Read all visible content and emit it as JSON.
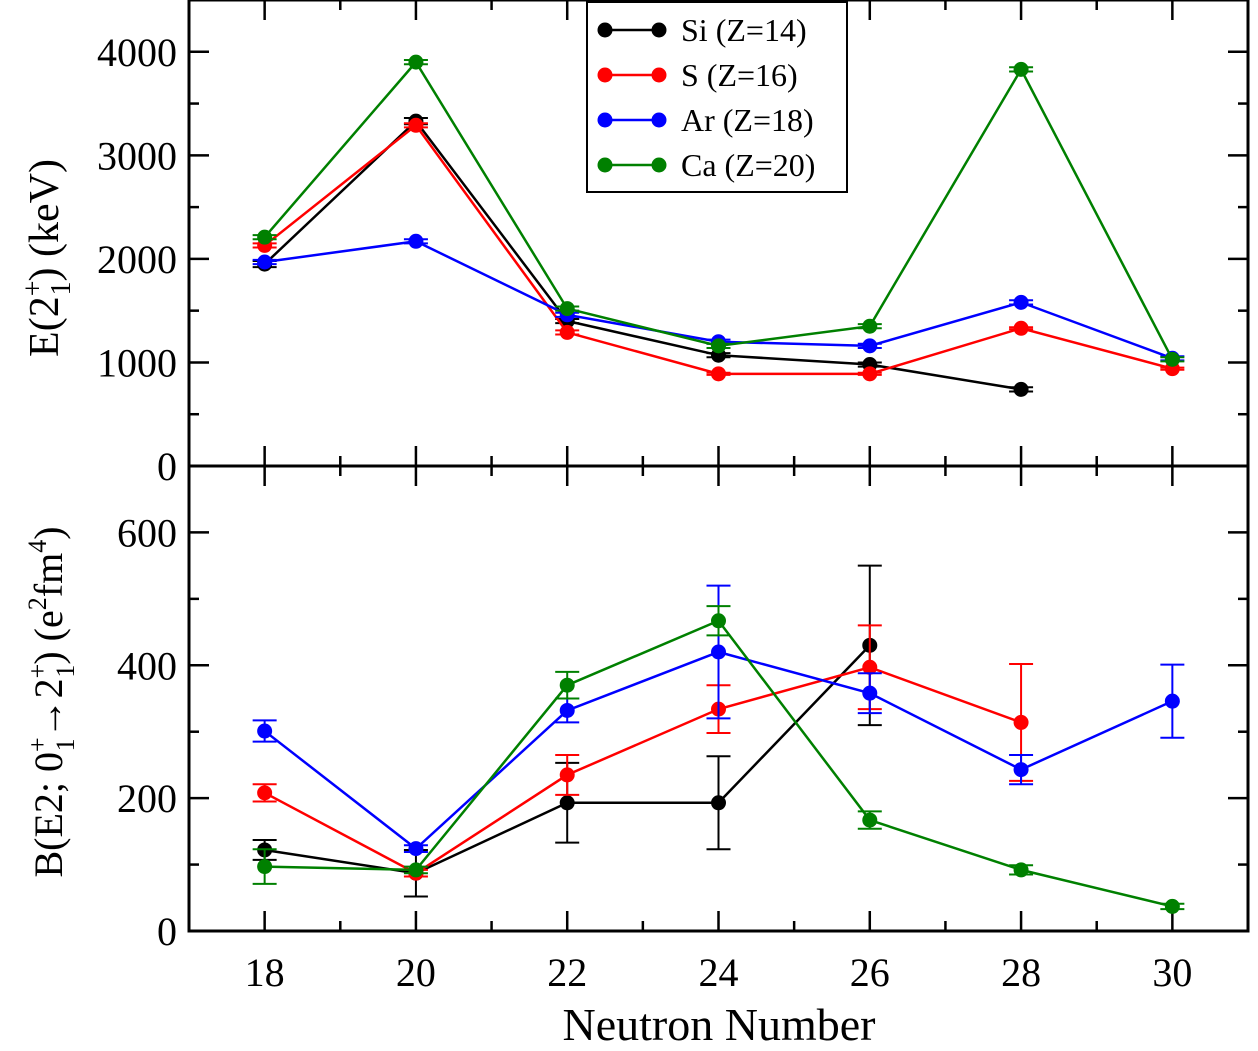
{
  "chart_data": [
    {
      "type": "line",
      "panel": "top",
      "ylabel": {
        "base": "E(2",
        "sup": "+",
        "sub": "1",
        "tail": ") (keV)"
      },
      "xlim": [
        17,
        31
      ],
      "ylim": [
        0,
        4500
      ],
      "yticks": [
        0,
        1000,
        2000,
        3000,
        4000
      ],
      "yminor_step": 500,
      "grid": false,
      "legend_position": "top-center",
      "series": [
        {
          "name": "Si (Z=14)",
          "color": "#000000",
          "points": [
            {
              "x": 18,
              "y": 1950,
              "err": 30
            },
            {
              "x": 20,
              "y": 3330,
              "err": 30
            },
            {
              "x": 22,
              "y": 1400,
              "err": 20
            },
            {
              "x": 24,
              "y": 1070,
              "err": 20
            },
            {
              "x": 26,
              "y": 980,
              "err": 20
            },
            {
              "x": 28,
              "y": 740,
              "err": 20
            }
          ]
        },
        {
          "name": "S (Z=16)",
          "color": "#ff0000",
          "points": [
            {
              "x": 18,
              "y": 2130,
              "err": 20
            },
            {
              "x": 20,
              "y": 3290,
              "err": 20
            },
            {
              "x": 22,
              "y": 1290,
              "err": 20
            },
            {
              "x": 24,
              "y": 890,
              "err": 10
            },
            {
              "x": 26,
              "y": 890,
              "err": 10
            },
            {
              "x": 28,
              "y": 1330,
              "err": 10
            },
            {
              "x": 30,
              "y": 940,
              "err": 10
            }
          ]
        },
        {
          "name": "Ar (Z=18)",
          "color": "#0000ff",
          "points": [
            {
              "x": 18,
              "y": 1970,
              "err": 20
            },
            {
              "x": 20,
              "y": 2170,
              "err": 20
            },
            {
              "x": 22,
              "y": 1460,
              "err": 20
            },
            {
              "x": 24,
              "y": 1200,
              "err": 20
            },
            {
              "x": 26,
              "y": 1160,
              "err": 20
            },
            {
              "x": 28,
              "y": 1580,
              "err": 20
            },
            {
              "x": 30,
              "y": 1040,
              "err": 20
            }
          ]
        },
        {
          "name": "Ca (Z=20)",
          "color": "#008000",
          "points": [
            {
              "x": 18,
              "y": 2210,
              "err": 20
            },
            {
              "x": 20,
              "y": 3900,
              "err": 20
            },
            {
              "x": 22,
              "y": 1520,
              "err": 20
            },
            {
              "x": 24,
              "y": 1160,
              "err": 20
            },
            {
              "x": 26,
              "y": 1350,
              "err": 20
            },
            {
              "x": 28,
              "y": 3830,
              "err": 20
            },
            {
              "x": 30,
              "y": 1030,
              "err": 20
            }
          ]
        }
      ]
    },
    {
      "type": "line",
      "panel": "bottom",
      "ylabel": {
        "p1": "B(E2; 0",
        "p1sup": "+",
        "p1sub": "1",
        "arrow": "→",
        "p2": "2",
        "p2sup": "+",
        "p2sub": "1",
        "p3": ") (e",
        "p3sup": "2",
        "p4": "fm",
        "p4sup": "4",
        "p5": ")"
      },
      "xlabel": "Neutron Number",
      "xlim": [
        17,
        31
      ],
      "xticks": [
        18,
        20,
        22,
        24,
        26,
        28,
        30
      ],
      "ylim": [
        0,
        700
      ],
      "yticks": [
        0,
        200,
        400,
        600
      ],
      "yminor_step": 100,
      "grid": false,
      "series": [
        {
          "name": "Si (Z=14)",
          "color": "#000000",
          "points": [
            {
              "x": 18,
              "y": 122,
              "err": 15
            },
            {
              "x": 20,
              "y": 87,
              "err": 35
            },
            {
              "x": 22,
              "y": 193,
              "err": 60
            },
            {
              "x": 24,
              "y": 193,
              "err": 70
            },
            {
              "x": 26,
              "y": 430,
              "err": 120
            }
          ]
        },
        {
          "name": "S (Z=16)",
          "color": "#ff0000",
          "points": [
            {
              "x": 18,
              "y": 208,
              "err": 13
            },
            {
              "x": 20,
              "y": 87,
              "err": 5
            },
            {
              "x": 22,
              "y": 235,
              "err": 30
            },
            {
              "x": 24,
              "y": 334,
              "err": 36
            },
            {
              "x": 26,
              "y": 397,
              "err": 63
            },
            {
              "x": 28,
              "y": 314,
              "err": 88
            }
          ]
        },
        {
          "name": "Ar (Z=18)",
          "color": "#0000ff",
          "points": [
            {
              "x": 18,
              "y": 301,
              "err": 16
            },
            {
              "x": 20,
              "y": 124,
              "err": 5
            },
            {
              "x": 22,
              "y": 332,
              "err": 18
            },
            {
              "x": 24,
              "y": 420,
              "err": 100
            },
            {
              "x": 26,
              "y": 358,
              "err": 30
            },
            {
              "x": 28,
              "y": 243,
              "err": 22
            },
            {
              "x": 30,
              "y": 346,
              "err": 55
            }
          ]
        },
        {
          "name": "Ca (Z=20)",
          "color": "#008000",
          "points": [
            {
              "x": 18,
              "y": 97,
              "err": 26
            },
            {
              "x": 20,
              "y": 92,
              "err": 5
            },
            {
              "x": 22,
              "y": 370,
              "err": 20
            },
            {
              "x": 24,
              "y": 467,
              "err": 22
            },
            {
              "x": 26,
              "y": 167,
              "err": 13
            },
            {
              "x": 28,
              "y": 92,
              "err": 7
            },
            {
              "x": 30,
              "y": 37,
              "err": 4
            }
          ]
        }
      ]
    }
  ]
}
